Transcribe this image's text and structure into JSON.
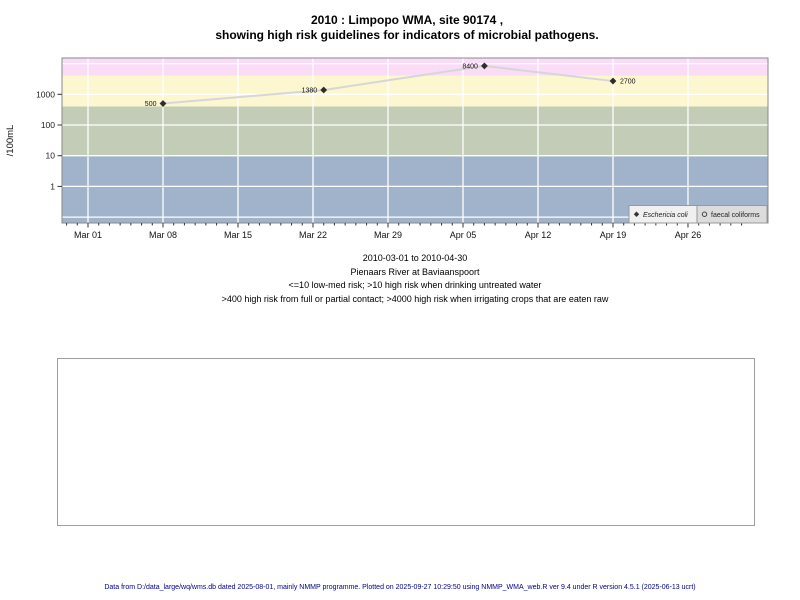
{
  "title": {
    "line1": "2010 : Limpopo WMA, site 90174 ,",
    "line2": "showing high risk guidelines for indicators of microbial pathogens."
  },
  "caption": {
    "lines": [
      "2010-03-01 to 2010-04-30",
      "Pienaars River at Baviaanspoort",
      "<=10 low-med risk; >10 high risk when drinking untreated water",
      ">400 high risk from full or partial contact; >4000 high risk when irrigating crops that are eaten raw"
    ]
  },
  "footer": {
    "text": "Data from D:/data_large/wq/wms.db dated 2025-08-01, mainly NMMP programme. Plotted on 2025-09-27 10:29:50 using NMMP_WMA_web.R ver 9.4 under R version 4.5.1 (2025-06-13 ucrt)"
  },
  "chart_data": {
    "type": "line",
    "title": "2010 : Limpopo WMA, site 90174 , showing high risk guidelines for indicators of microbial pathogens.",
    "ylabel": "/100mL",
    "y_scale": "log10",
    "ylim": [
      0.06,
      15000
    ],
    "x_start": "2010-03-01",
    "x_end": "2010-04-30",
    "grid": true,
    "legend_position": "bottom-right",
    "line_color": "#d6d6d9",
    "marker_color": "#2d2d2d",
    "x_ticks": [
      {
        "label": "Mar 01",
        "day": 0
      },
      {
        "label": "Mar 08",
        "day": 7
      },
      {
        "label": "Mar 15",
        "day": 14
      },
      {
        "label": "Mar 22",
        "day": 21
      },
      {
        "label": "Mar 29",
        "day": 28
      },
      {
        "label": "Apr 05",
        "day": 35
      },
      {
        "label": "Apr 12",
        "day": 42
      },
      {
        "label": "Apr 19",
        "day": 49
      },
      {
        "label": "Apr 26",
        "day": 56
      }
    ],
    "y_ticks": [
      1000,
      100,
      10,
      1
    ],
    "gridline_decades": [
      4,
      3,
      2,
      1,
      0,
      -1
    ],
    "bands": [
      {
        "name": "irrigation-risk-above-4000",
        "from": 4000,
        "to": 15000,
        "color": "#fadcf7"
      },
      {
        "name": "contact-risk-400-4000",
        "from": 400,
        "to": 4000,
        "color": "#fdf7d0"
      },
      {
        "name": "drinking-risk-10-400",
        "from": 10,
        "to": 400,
        "color": "#c2ccb6"
      },
      {
        "name": "low-med-risk-below-10",
        "from": 0.06,
        "to": 10,
        "color": "#a1b2cb"
      }
    ],
    "series": [
      {
        "name": "Eschericia coli",
        "marker": "diamond",
        "points": [
          {
            "date": "2010-03-08",
            "value": 500,
            "label": "500",
            "label_side": "left"
          },
          {
            "date": "2010-03-23",
            "value": 1380,
            "label": "1380",
            "label_side": "left"
          },
          {
            "date": "2010-04-07",
            "value": 8400,
            "label": "8400",
            "label_side": "left"
          },
          {
            "date": "2010-04-19",
            "value": 2700,
            "label": "2700",
            "label_side": "right"
          }
        ]
      },
      {
        "name": "faecal coliforms",
        "marker": "open-circle",
        "points": []
      }
    ],
    "legend": [
      {
        "marker": "diamond",
        "label": "Eschericia coli",
        "italic": true
      },
      {
        "marker": "open-circle",
        "label": "faecal coliforms",
        "italic": false
      }
    ]
  }
}
